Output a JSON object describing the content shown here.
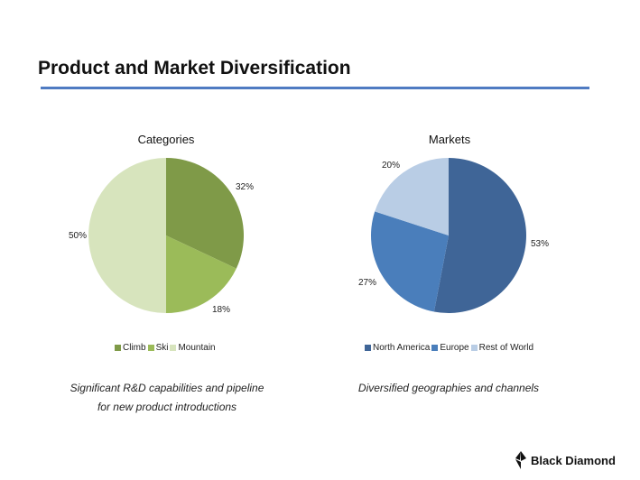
{
  "title": "Product and Market Diversification",
  "chart_data": [
    {
      "type": "pie",
      "title": "Categories",
      "categories": [
        "Climb",
        "Ski",
        "Mountain"
      ],
      "values": [
        32,
        18,
        50
      ],
      "labels": [
        "32%",
        "18%",
        "50%"
      ],
      "colors": [
        "#7F9A48",
        "#9BBB59",
        "#D7E4BD"
      ],
      "legend": "bottom"
    },
    {
      "type": "pie",
      "title": "Markets",
      "categories": [
        "North America",
        "Europe",
        "Rest of World"
      ],
      "values": [
        53,
        27,
        20
      ],
      "labels": [
        "53%",
        "27%",
        "20%"
      ],
      "colors": [
        "#3F6597",
        "#4A7EBB",
        "#B9CDE5"
      ],
      "legend": "bottom"
    }
  ],
  "captions": [
    "Significant R&D capabilities and pipeline",
    "for new product introductions",
    "Diversified geographies and channels"
  ],
  "logo": "Black Diamond"
}
